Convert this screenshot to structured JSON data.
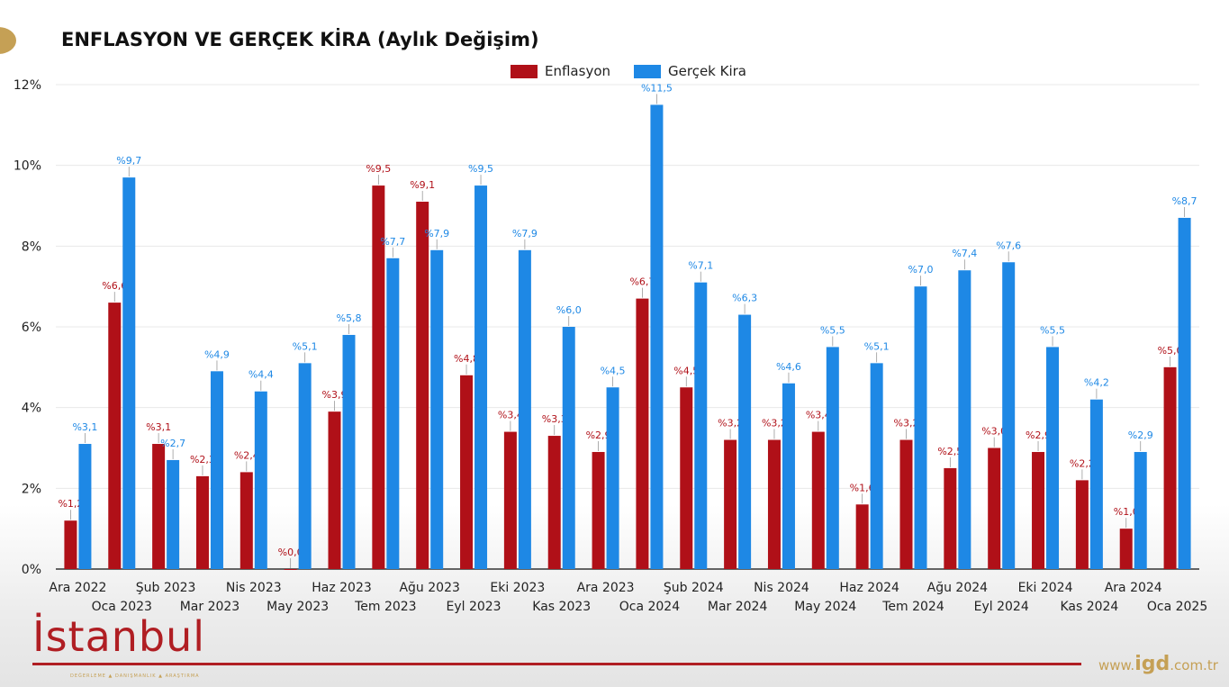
{
  "chart_data": {
    "type": "bar",
    "title": "ENFLASYON VE GERÇEK KİRA (Aylık Değişim)",
    "xlabel": "",
    "ylabel": "",
    "ylim": [
      0,
      12
    ],
    "yticks": [
      "0%",
      "2%",
      "4%",
      "6%",
      "8%",
      "10%",
      "12%"
    ],
    "legend_position": "top-center",
    "categories": [
      "Ara 2022",
      "Oca 2023",
      "Şub 2023",
      "Mar 2023",
      "Nis 2023",
      "May 2023",
      "Haz 2023",
      "Tem 2023",
      "Ağu 2023",
      "Eyl 2023",
      "Eki 2023",
      "Kas 2023",
      "Ara 2023",
      "Oca 2024",
      "Şub 2024",
      "Mar 2024",
      "Nis 2024",
      "May 2024",
      "Haz 2024",
      "Tem 2024",
      "Ağu 2024",
      "Eyl 2024",
      "Eki 2024",
      "Kas 2024",
      "Ara 2024",
      "Oca 2025"
    ],
    "series": [
      {
        "name": "Enflasyon",
        "color": "#b01018",
        "values": [
          1.2,
          6.6,
          3.1,
          2.3,
          2.4,
          0.0,
          3.9,
          9.5,
          9.1,
          4.8,
          3.4,
          3.3,
          2.9,
          6.7,
          4.5,
          3.2,
          3.2,
          3.4,
          1.6,
          3.2,
          2.5,
          3.0,
          2.9,
          2.2,
          1.0,
          5.0
        ]
      },
      {
        "name": "Gerçek Kira",
        "color": "#1e88e5",
        "values": [
          3.1,
          9.7,
          2.7,
          4.9,
          4.4,
          5.1,
          5.8,
          7.7,
          7.9,
          9.5,
          7.9,
          6.0,
          4.5,
          11.5,
          7.1,
          6.3,
          4.6,
          5.5,
          5.1,
          7.0,
          7.4,
          7.6,
          5.5,
          4.2,
          2.9,
          8.7
        ]
      }
    ]
  },
  "branding": {
    "logo": "İstanbul",
    "tagline": "DEĞERLEME ▲ DANIŞMANLIK ▲ ARAŞTIRMA",
    "url_prefix": "www.",
    "url_main": "igd",
    "url_suffix": ".com.tr"
  }
}
